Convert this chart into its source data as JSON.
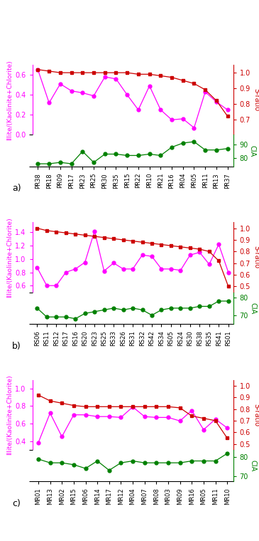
{
  "panel_a": {
    "x_labels": [
      "PR38",
      "PR18",
      "PR09",
      "PR17",
      "PR23",
      "PR25",
      "PR30",
      "PR35",
      "PR15",
      "PR22",
      "PR10",
      "PR21",
      "PR16",
      "PR04",
      "PR05",
      "PR11",
      "PR13",
      "PR37"
    ],
    "illite": [
      0.65,
      0.32,
      0.51,
      0.44,
      0.42,
      0.39,
      0.58,
      0.56,
      0.4,
      0.25,
      0.49,
      0.25,
      0.15,
      0.16,
      0.07,
      0.43,
      0.33,
      0.25
    ],
    "sratio": [
      1.02,
      1.01,
      1.0,
      1.0,
      1.0,
      1.0,
      1.0,
      1.0,
      1.0,
      0.99,
      0.99,
      0.98,
      0.97,
      0.95,
      0.93,
      0.89,
      0.82,
      0.72
    ],
    "cia": [
      76,
      76,
      77,
      76,
      85,
      77,
      83,
      83,
      82,
      82,
      83,
      82,
      88,
      91,
      92,
      86,
      86,
      87
    ],
    "illite_ylim": [
      0.0,
      0.7
    ],
    "illite_yticks": [
      0.0,
      0.2,
      0.4,
      0.6
    ],
    "sratio_ylim": [
      0.6,
      1.05
    ],
    "sratio_yticks": [
      0.7,
      0.8,
      0.9,
      1.0
    ],
    "cia_ylim": [
      74,
      97
    ],
    "cia_yticks": [
      80,
      90
    ],
    "label": "a)"
  },
  "panel_b": {
    "x_labels": [
      "RS06",
      "RS11",
      "RS12",
      "RS17",
      "RS16",
      "RS20",
      "RS23",
      "RS25",
      "RS33",
      "RS26",
      "RS31",
      "RS32",
      "RS42",
      "RS34",
      "RS05",
      "RS24",
      "RS30",
      "RS38",
      "RS35",
      "RS41",
      "RS01"
    ],
    "illite": [
      0.87,
      0.6,
      0.6,
      0.8,
      0.85,
      0.95,
      1.42,
      0.82,
      0.94,
      0.85,
      0.85,
      1.06,
      1.04,
      0.85,
      0.85,
      0.83,
      1.06,
      1.1,
      0.92,
      1.22,
      0.8
    ],
    "sratio": [
      1.0,
      0.98,
      0.97,
      0.96,
      0.95,
      0.94,
      0.93,
      0.92,
      0.91,
      0.9,
      0.89,
      0.88,
      0.87,
      0.86,
      0.85,
      0.84,
      0.83,
      0.82,
      0.8,
      0.72,
      0.5
    ],
    "cia": [
      74,
      69,
      69,
      69,
      68,
      71,
      72,
      73,
      74,
      73,
      74,
      73,
      70,
      73,
      74,
      74,
      74,
      75,
      75,
      78,
      78
    ],
    "illite_ylim": [
      0.5,
      1.55
    ],
    "illite_yticks": [
      0.6,
      0.8,
      1.0,
      1.2,
      1.4
    ],
    "sratio_ylim": [
      0.45,
      1.05
    ],
    "sratio_yticks": [
      0.5,
      0.6,
      0.7,
      0.8,
      0.9,
      1.0
    ],
    "cia_ylim": [
      65,
      83
    ],
    "cia_yticks": [
      70,
      80
    ],
    "label": "b)"
  },
  "panel_c": {
    "x_labels": [
      "MR01",
      "MR13",
      "MR02",
      "MR15",
      "MR06",
      "MR14",
      "MR17",
      "MR12",
      "MR04",
      "MR07",
      "MR08",
      "MR03",
      "MR09",
      "MR16",
      "MR05",
      "MR11",
      "MR10"
    ],
    "illite": [
      0.38,
      0.72,
      0.45,
      0.7,
      0.7,
      0.68,
      0.68,
      0.67,
      0.79,
      0.68,
      0.67,
      0.67,
      0.63,
      0.75,
      0.53,
      0.65,
      0.55
    ],
    "sratio": [
      0.92,
      0.87,
      0.85,
      0.83,
      0.82,
      0.82,
      0.82,
      0.82,
      0.82,
      0.82,
      0.82,
      0.82,
      0.81,
      0.74,
      0.72,
      0.7,
      0.55
    ],
    "cia": [
      79,
      77,
      77,
      76,
      74,
      78,
      73,
      77,
      78,
      77,
      77,
      77,
      77,
      78,
      78,
      78,
      82
    ],
    "illite_ylim": [
      0.3,
      1.1
    ],
    "illite_yticks": [
      0.4,
      0.6,
      0.8,
      1.0
    ],
    "sratio_ylim": [
      0.45,
      1.05
    ],
    "sratio_yticks": [
      0.5,
      0.6,
      0.7,
      0.8,
      0.9,
      1.0
    ],
    "cia_ylim": [
      67,
      84
    ],
    "cia_yticks": [
      70,
      80
    ],
    "label": "c)"
  },
  "colors": {
    "illite": "#FF00FF",
    "sratio": "#CC0000",
    "cia": "#008000"
  }
}
